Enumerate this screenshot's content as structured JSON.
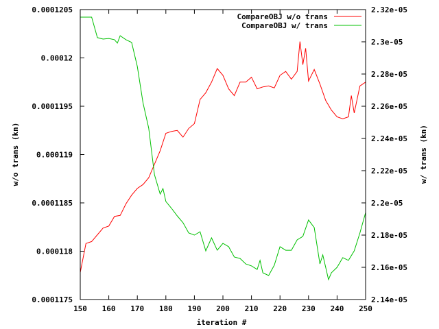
{
  "chart_data": {
    "type": "line",
    "title": "",
    "xlabel": "iteration #",
    "ylabel": "w/o trans (kn)",
    "y2label": "w/ trans (kn)",
    "xlim": [
      150,
      250
    ],
    "ylim": [
      0.0001175,
      0.0001205
    ],
    "y2lim": [
      2.14e-05,
      2.32e-05
    ],
    "grid": false,
    "legend_position": "top-right",
    "x_ticks": [
      "150",
      "160",
      "170",
      "180",
      "190",
      "200",
      "210",
      "220",
      "230",
      "240",
      "250"
    ],
    "y_ticks": [
      "0.0001175",
      "0.000118",
      "0.0001185",
      "0.000119",
      "0.0001195",
      "0.00012",
      "0.0001205"
    ],
    "y2_ticks": [
      "2.14e-05",
      "2.16e-05",
      "2.18e-05",
      "2.2e-05",
      "2.22e-05",
      "2.24e-05",
      "2.26e-05",
      "2.28e-05",
      "2.3e-05",
      "2.32e-05"
    ],
    "series": [
      {
        "name": "CompareOBJ w/o trans",
        "axis": "y",
        "color": "#ff0000",
        "x": [
          150,
          152,
          154,
          156,
          158,
          160,
          162,
          164,
          166,
          168,
          170,
          172,
          174,
          176,
          178,
          180,
          182,
          184,
          186,
          188,
          190,
          192,
          194,
          196,
          198,
          200,
          202,
          204,
          206,
          208,
          210,
          212,
          214,
          216,
          218,
          220,
          222,
          224,
          226,
          227,
          228,
          229,
          230,
          232,
          234,
          236,
          238,
          240,
          242,
          244,
          245,
          246,
          248,
          250
        ],
        "y": [
          0.00011778,
          0.00011808,
          0.0001181,
          0.00011817,
          0.00011824,
          0.00011826,
          0.00011836,
          0.00011837,
          0.00011849,
          0.00011858,
          0.00011865,
          0.00011869,
          0.00011876,
          0.0001189,
          0.00011904,
          0.00011922,
          0.00011924,
          0.00011925,
          0.00011918,
          0.00011927,
          0.00011932,
          0.00011957,
          0.00011964,
          0.00011975,
          0.00011989,
          0.00011982,
          0.00011968,
          0.00011961,
          0.00011975,
          0.00011975,
          0.0001198,
          0.00011968,
          0.0001197,
          0.00011971,
          0.00011969,
          0.00011982,
          0.00011986,
          0.00011978,
          0.00011986,
          0.00012017,
          0.00011993,
          0.0001201,
          0.00011976,
          0.00011988,
          0.00011973,
          0.00011956,
          0.00011946,
          0.00011939,
          0.00011937,
          0.00011939,
          0.00011961,
          0.00011943,
          0.00011971,
          0.00011975
        ]
      },
      {
        "name": "CompareOBJ w/ trans",
        "axis": "y2",
        "color": "#00c000",
        "x": [
          150,
          152,
          154,
          156,
          158,
          160,
          162,
          163,
          164,
          166,
          168,
          170,
          172,
          174,
          176,
          178,
          179,
          180,
          182,
          184,
          186,
          188,
          190,
          192,
          194,
          196,
          198,
          200,
          202,
          204,
          206,
          208,
          210,
          212,
          213,
          214,
          216,
          218,
          220,
          222,
          224,
          226,
          228,
          230,
          232,
          234,
          235,
          236,
          237,
          238,
          240,
          242,
          244,
          246,
          248,
          250
        ],
        "y": [
          2.3153e-05,
          2.3153e-05,
          2.3153e-05,
          2.3026e-05,
          2.3017e-05,
          2.3021e-05,
          2.3013e-05,
          2.2992e-05,
          2.3038e-05,
          2.3013e-05,
          2.2996e-05,
          2.2847e-05,
          2.2621e-05,
          2.2464e-05,
          2.2175e-05,
          2.2055e-05,
          2.2089e-05,
          2.2009e-05,
          2.1966e-05,
          2.1919e-05,
          2.1877e-05,
          2.1813e-05,
          2.18e-05,
          2.1821e-05,
          2.1702e-05,
          2.1783e-05,
          2.1706e-05,
          2.1749e-05,
          2.1728e-05,
          2.1664e-05,
          2.1655e-05,
          2.1621e-05,
          2.1609e-05,
          2.1587e-05,
          2.1643e-05,
          2.1566e-05,
          2.1549e-05,
          2.1613e-05,
          2.1728e-05,
          2.1706e-05,
          2.1706e-05,
          2.177e-05,
          2.1792e-05,
          2.1894e-05,
          2.1847e-05,
          2.1621e-05,
          2.1677e-05,
          2.16e-05,
          2.1524e-05,
          2.1566e-05,
          2.16e-05,
          2.166e-05,
          2.1643e-05,
          2.1702e-05,
          2.1813e-05,
          2.194e-05
        ]
      }
    ]
  }
}
